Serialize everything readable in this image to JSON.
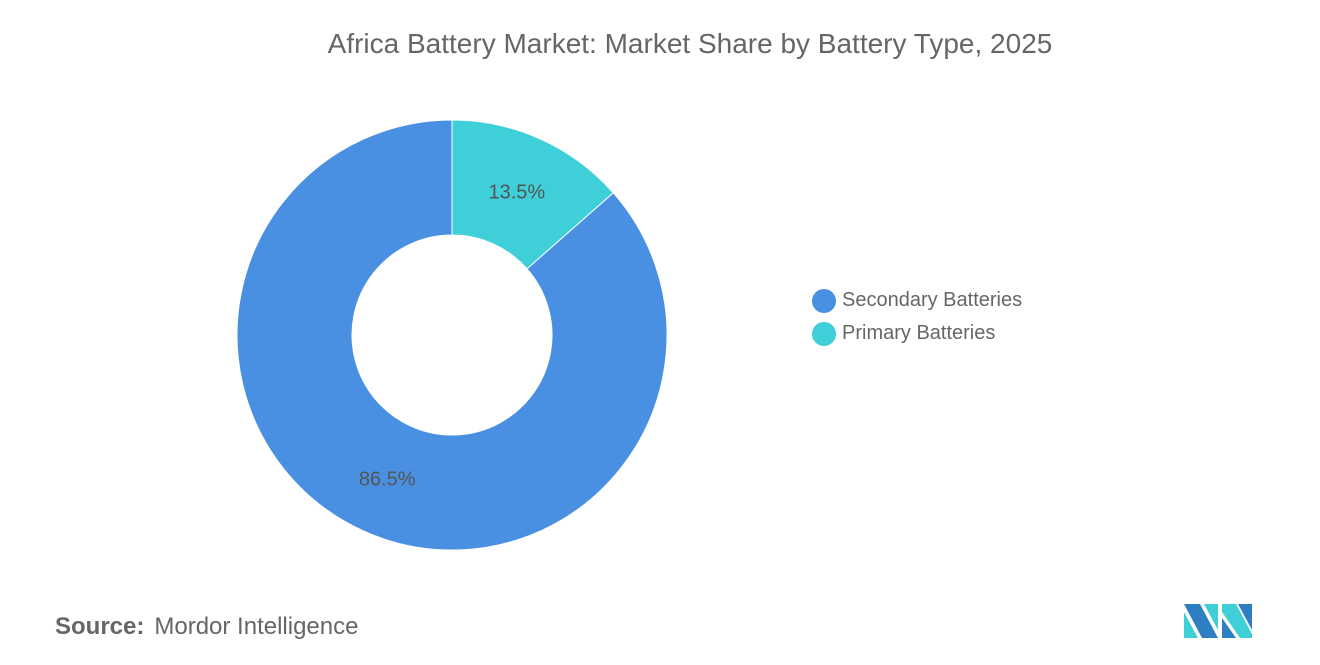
{
  "chart_data": {
    "type": "pie",
    "donut": true,
    "title": "Africa Battery Market: Market Share by Battery Type, 2025",
    "categories": [
      "Secondary Batteries",
      "Primary Batteries"
    ],
    "values": [
      86.5,
      13.5
    ],
    "labels": [
      "86.5%",
      "13.5%"
    ],
    "colors": [
      "#4a90e2",
      "#3ecfd9"
    ],
    "legend_position": "right"
  },
  "source": {
    "label": "Source:",
    "value": "Mordor Intelligence"
  },
  "logo": {
    "text": "Mordor Intelligence"
  }
}
